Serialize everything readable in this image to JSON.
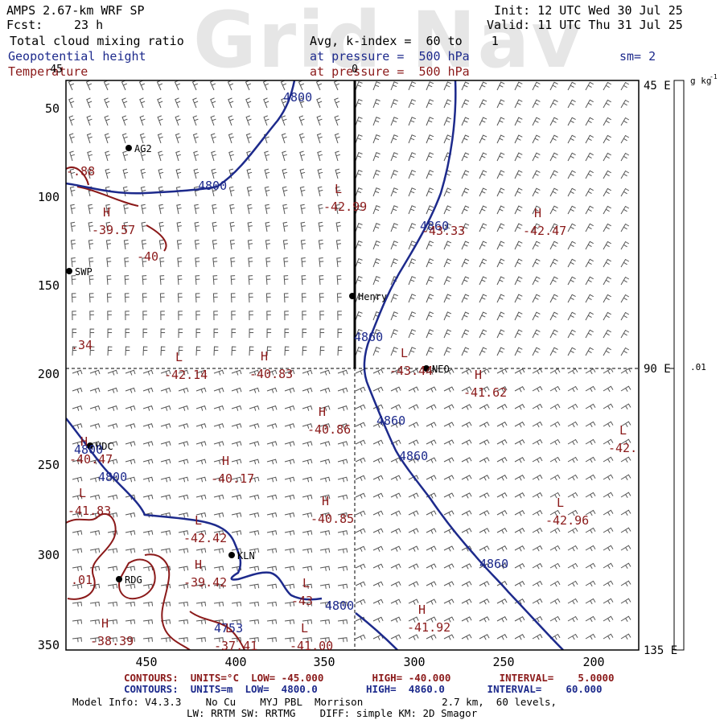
{
  "watermark": "Grid Nav",
  "header": {
    "model": "AMPS 2.67-km WRF SP",
    "fcst_label": "Fcst:",
    "fcst_value": "23 h",
    "init": "Init: 12 UTC Wed 30 Jul 25",
    "valid": "Valid: 11 UTC Thu 31 Jul 25",
    "field1": "Total cloud mixing ratio",
    "field2": "Geopotential height",
    "field3": "Temperature",
    "avg": "Avg, k-index =  60 to    1",
    "pressure1": "at pressure =  500 hPa",
    "pressure2": "at pressure =  500 hPa",
    "smoothing": "sm= 2"
  },
  "colors": {
    "height_contour": "#1d2a8c",
    "temperature_label": "#8b1a1a",
    "coast": "#8b1a1a",
    "wind_barb": "#555555"
  },
  "axes": {
    "left_ticks": [
      "50",
      "100",
      "150",
      "200",
      "250",
      "300",
      "350"
    ],
    "top_left_tick": "45",
    "top_tick": "0",
    "bottom_ticks": [
      "450",
      "400",
      "350",
      "300",
      "250",
      "200"
    ],
    "right_ticks": [
      "45 E",
      "90 E",
      "135 E"
    ],
    "colorbar_unit": "g kg",
    "colorbar_unit_sup": "-1",
    "colorbar_tick": ".01"
  },
  "stations": [
    "AG2",
    "SWP",
    "Henry",
    "NEO",
    "HDC",
    "KLN",
    "RDG"
  ],
  "height_labels": [
    "4800",
    "4800",
    "4800",
    "4800",
    "4800",
    "4860",
    "4860",
    "4860",
    "4860",
    "4860",
    "4753"
  ],
  "temperature_labels": [
    {
      "text": "-39.57",
      "kind": "H"
    },
    {
      "text": "-42.99",
      "kind": "L"
    },
    {
      "text": "-43.33",
      "kind": ""
    },
    {
      "text": "-42.47",
      "kind": "H"
    },
    {
      "text": "-40",
      "kind": ""
    },
    {
      "text": "-42.14",
      "kind": "L"
    },
    {
      "text": "-40.83",
      "kind": "H"
    },
    {
      "text": "-43.44",
      "kind": "L"
    },
    {
      "text": "-41.62",
      "kind": "H"
    },
    {
      "text": "-40.86",
      "kind": "H"
    },
    {
      "text": "-40.47",
      "kind": "H"
    },
    {
      "text": "-40.17",
      "kind": "H"
    },
    {
      "text": "-42.",
      "kind": "L"
    },
    {
      "text": "-41.83",
      "kind": "L"
    },
    {
      "text": "-40.85",
      "kind": "H"
    },
    {
      "text": "-42.96",
      "kind": "L"
    },
    {
      "text": "-42.42",
      "kind": "L"
    },
    {
      "text": "-39.42",
      "kind": "H"
    },
    {
      "text": "-43",
      "kind": "L"
    },
    {
      "text": "-41.92",
      "kind": "H"
    },
    {
      "text": "-38.39",
      "kind": "H"
    },
    {
      "text": "-37.41",
      "kind": "L"
    },
    {
      "text": "-41.00",
      "kind": "L"
    },
    {
      "text": "-.88",
      "kind": ""
    },
    {
      "text": ".34",
      "kind": ""
    },
    {
      "text": ".01",
      "kind": ""
    }
  ],
  "footer": {
    "contours_temp": "CONTOURS:  UNITS=°C  LOW= -45.000        HIGH= -40.000        INTERVAL=    5.0000",
    "contours_height": "CONTOURS:  UNITS=m  LOW=  4800.0        HIGH=  4860.0       INTERVAL=    60.000",
    "model_info": "Model Info: V4.3.3    No Cu    MYJ PBL  Morrison             2.7 km,  60 levels,",
    "model_info2": "LW: RRTM SW: RRTMG    DIFF: simple KM: 2D Smagor"
  }
}
